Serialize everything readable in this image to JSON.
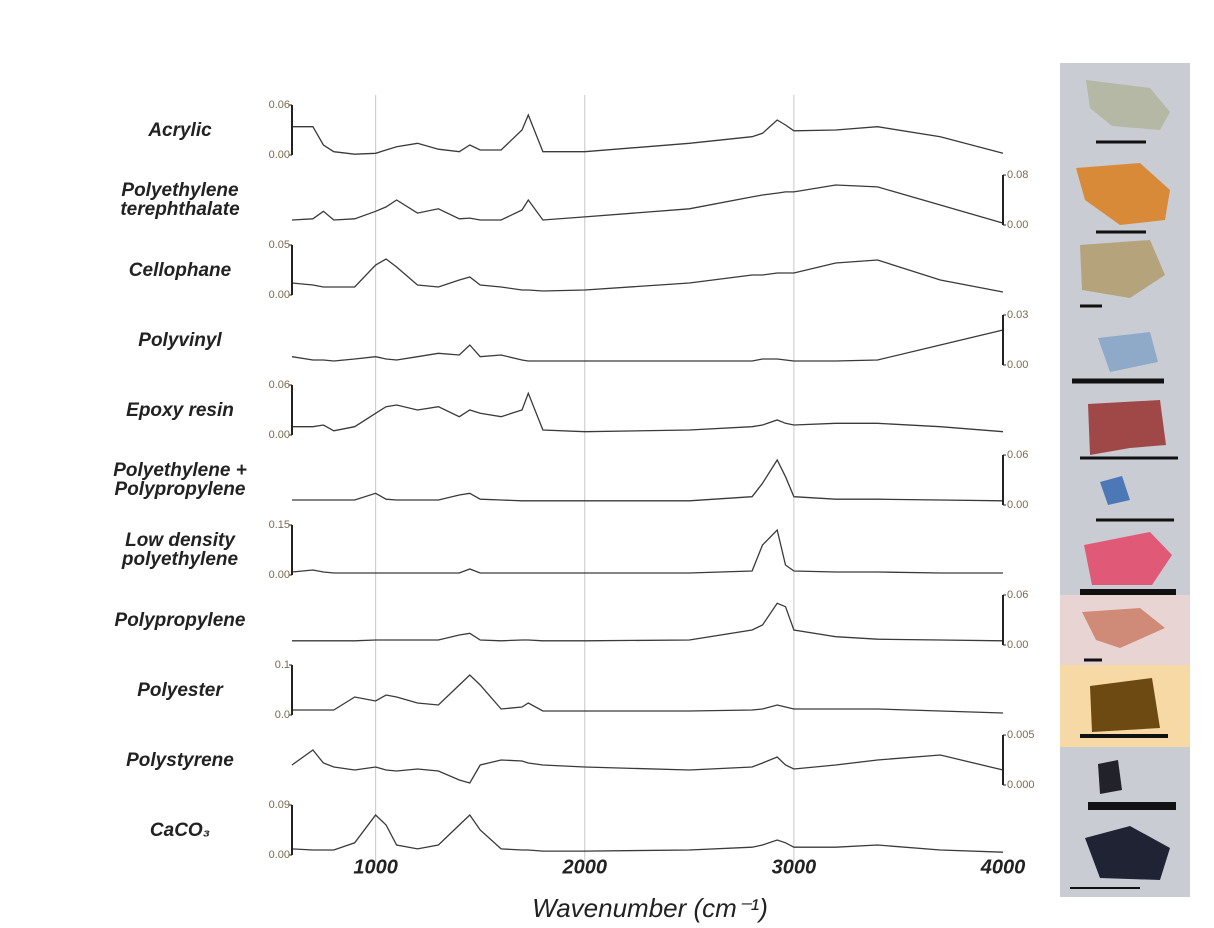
{
  "chart_data": {
    "type": "line",
    "x_label": "Wavenumber (cm⁻¹)",
    "x": [
      600,
      700,
      750,
      800,
      900,
      1000,
      1050,
      1100,
      1200,
      1300,
      1400,
      1450,
      1500,
      1600,
      1700,
      1730,
      1800,
      2000,
      2500,
      2800,
      2850,
      2920,
      2960,
      3000,
      3200,
      3400,
      3700,
      4000
    ],
    "xlim": [
      600,
      4000
    ],
    "xticks": [
      1000,
      2000,
      3000,
      4000
    ],
    "grid": true,
    "series": [
      {
        "name": "Acrylic",
        "color": "#3a3a3a",
        "axis_side": "left",
        "ylim": [
          0,
          0.06
        ],
        "yticks": [
          {
            "value": 0,
            "label": "0.00"
          },
          0.06
        ],
        "values": [
          0.034,
          0.034,
          0.012,
          0.004,
          0.001,
          0.002,
          0.006,
          0.01,
          0.014,
          0.007,
          0.004,
          0.012,
          0.006,
          0.006,
          0.03,
          0.048,
          0.004,
          0.004,
          0.014,
          0.022,
          0.026,
          0.042,
          0.036,
          0.029,
          0.03,
          0.034,
          0.022,
          0.002
        ]
      },
      {
        "name": "Polyethylene terephthalate",
        "color": "#3a3a3a",
        "axis_side": "right",
        "ylim": [
          0,
          0.08
        ],
        "yticks": [
          {
            "value": 0,
            "label": "0.00"
          },
          0.08
        ],
        "values": [
          0.008,
          0.01,
          0.022,
          0.008,
          0.01,
          0.022,
          0.029,
          0.04,
          0.019,
          0.026,
          0.01,
          0.011,
          0.008,
          0.008,
          0.024,
          0.04,
          0.008,
          0.013,
          0.026,
          0.045,
          0.048,
          0.051,
          0.053,
          0.053,
          0.064,
          0.061,
          0.032,
          0.003
        ]
      },
      {
        "name": "Cellophane",
        "color": "#3a3a3a",
        "axis_side": "left",
        "ylim": [
          0,
          0.05
        ],
        "yticks": [
          {
            "value": 0,
            "label": "0.00"
          },
          0.05
        ],
        "values": [
          0.012,
          0.01,
          0.008,
          0.008,
          0.008,
          0.03,
          0.036,
          0.028,
          0.01,
          0.008,
          0.015,
          0.018,
          0.01,
          0.008,
          0.005,
          0.005,
          0.004,
          0.005,
          0.012,
          0.02,
          0.02,
          0.022,
          0.022,
          0.022,
          0.032,
          0.035,
          0.015,
          0.003
        ]
      },
      {
        "name": "Polyvinyl",
        "color": "#3a3a3a",
        "axis_side": "right",
        "ylim": [
          0,
          0.03
        ],
        "yticks": [
          {
            "value": 0,
            "label": "0.00"
          },
          0.03
        ],
        "values": [
          0.005,
          0.003,
          0.003,
          0.0024,
          0.0036,
          0.005,
          0.0036,
          0.003,
          0.005,
          0.007,
          0.006,
          0.012,
          0.005,
          0.006,
          0.003,
          0.0024,
          0.0024,
          0.0024,
          0.0024,
          0.0024,
          0.0036,
          0.0036,
          0.003,
          0.0024,
          0.0024,
          0.003,
          0.012,
          0.021
        ]
      },
      {
        "name": "Epoxy resin",
        "color": "#3a3a3a",
        "axis_side": "left",
        "ylim": [
          0,
          0.06
        ],
        "yticks": [
          {
            "value": 0,
            "label": "0.00"
          },
          0.06
        ],
        "values": [
          0.01,
          0.01,
          0.012,
          0.005,
          0.01,
          0.026,
          0.034,
          0.036,
          0.03,
          0.034,
          0.022,
          0.03,
          0.026,
          0.022,
          0.03,
          0.05,
          0.006,
          0.004,
          0.006,
          0.01,
          0.012,
          0.018,
          0.014,
          0.012,
          0.014,
          0.014,
          0.01,
          0.004
        ]
      },
      {
        "name": "Polyethylene + Polypropylene",
        "color": "#3a3a3a",
        "axis_side": "right",
        "ylim": [
          0,
          0.06
        ],
        "yticks": [
          {
            "value": 0,
            "label": "0.00"
          },
          0.06
        ],
        "values": [
          0.006,
          0.006,
          0.006,
          0.006,
          0.006,
          0.014,
          0.007,
          0.006,
          0.006,
          0.006,
          0.012,
          0.014,
          0.007,
          0.006,
          0.005,
          0.005,
          0.005,
          0.005,
          0.005,
          0.01,
          0.026,
          0.054,
          0.034,
          0.01,
          0.007,
          0.007,
          0.006,
          0.005
        ]
      },
      {
        "name": "Low density polyethylene",
        "color": "#3a3a3a",
        "axis_side": "left",
        "ylim": [
          0,
          0.15
        ],
        "yticks": [
          {
            "value": 0,
            "label": "0.00"
          },
          0.15
        ],
        "values": [
          0.009,
          0.015,
          0.009,
          0.006,
          0.006,
          0.006,
          0.006,
          0.006,
          0.006,
          0.006,
          0.006,
          0.018,
          0.006,
          0.006,
          0.006,
          0.006,
          0.006,
          0.006,
          0.006,
          0.012,
          0.09,
          0.135,
          0.03,
          0.012,
          0.009,
          0.009,
          0.006,
          0.006
        ]
      },
      {
        "name": "Polypropylene",
        "color": "#3a3a3a",
        "axis_side": "right",
        "ylim": [
          0,
          0.06
        ],
        "yticks": [
          {
            "value": 0,
            "label": "0.00"
          },
          0.06
        ],
        "values": [
          0.005,
          0.005,
          0.005,
          0.005,
          0.005,
          0.006,
          0.006,
          0.006,
          0.006,
          0.006,
          0.012,
          0.014,
          0.006,
          0.005,
          0.006,
          0.006,
          0.005,
          0.005,
          0.006,
          0.018,
          0.024,
          0.05,
          0.046,
          0.018,
          0.01,
          0.007,
          0.006,
          0.005
        ]
      },
      {
        "name": "Polyester",
        "color": "#3a3a3a",
        "axis_side": "left",
        "ylim": [
          0,
          0.1
        ],
        "yticks": [
          {
            "value": 0,
            "label": "0.0"
          },
          0.1
        ],
        "values": [
          0.01,
          0.01,
          0.01,
          0.01,
          0.036,
          0.028,
          0.04,
          0.036,
          0.024,
          0.02,
          0.06,
          0.08,
          0.06,
          0.012,
          0.016,
          0.024,
          0.008,
          0.008,
          0.008,
          0.01,
          0.012,
          0.02,
          0.016,
          0.012,
          0.012,
          0.012,
          0.008,
          0.004
        ]
      },
      {
        "name": "Polystyrene",
        "color": "#3a3a3a",
        "axis_side": "right",
        "ylim": [
          0,
          0.005
        ],
        "yticks": [
          {
            "value": 0,
            "label": "0.000"
          },
          0.005
        ],
        "values": [
          0.002,
          0.0035,
          0.0022,
          0.0018,
          0.0015,
          0.0018,
          0.0015,
          0.0014,
          0.0016,
          0.0014,
          0.0005,
          0.0002,
          0.002,
          0.0025,
          0.0024,
          0.0022,
          0.002,
          0.0018,
          0.0015,
          0.0018,
          0.0022,
          0.0028,
          0.002,
          0.0016,
          0.002,
          0.0025,
          0.003,
          0.0015
        ]
      },
      {
        "name": "CaCO₃",
        "color": "#3a3a3a",
        "axis_side": "left",
        "ylim": [
          0,
          0.09
        ],
        "yticks": [
          {
            "value": 0,
            "label": "0.00"
          },
          0.09
        ],
        "values": [
          0.011,
          0.009,
          0.009,
          0.009,
          0.022,
          0.072,
          0.054,
          0.018,
          0.011,
          0.018,
          0.054,
          0.072,
          0.045,
          0.011,
          0.009,
          0.009,
          0.007,
          0.007,
          0.009,
          0.014,
          0.018,
          0.027,
          0.022,
          0.014,
          0.014,
          0.018,
          0.009,
          0.005
        ]
      }
    ]
  }
}
